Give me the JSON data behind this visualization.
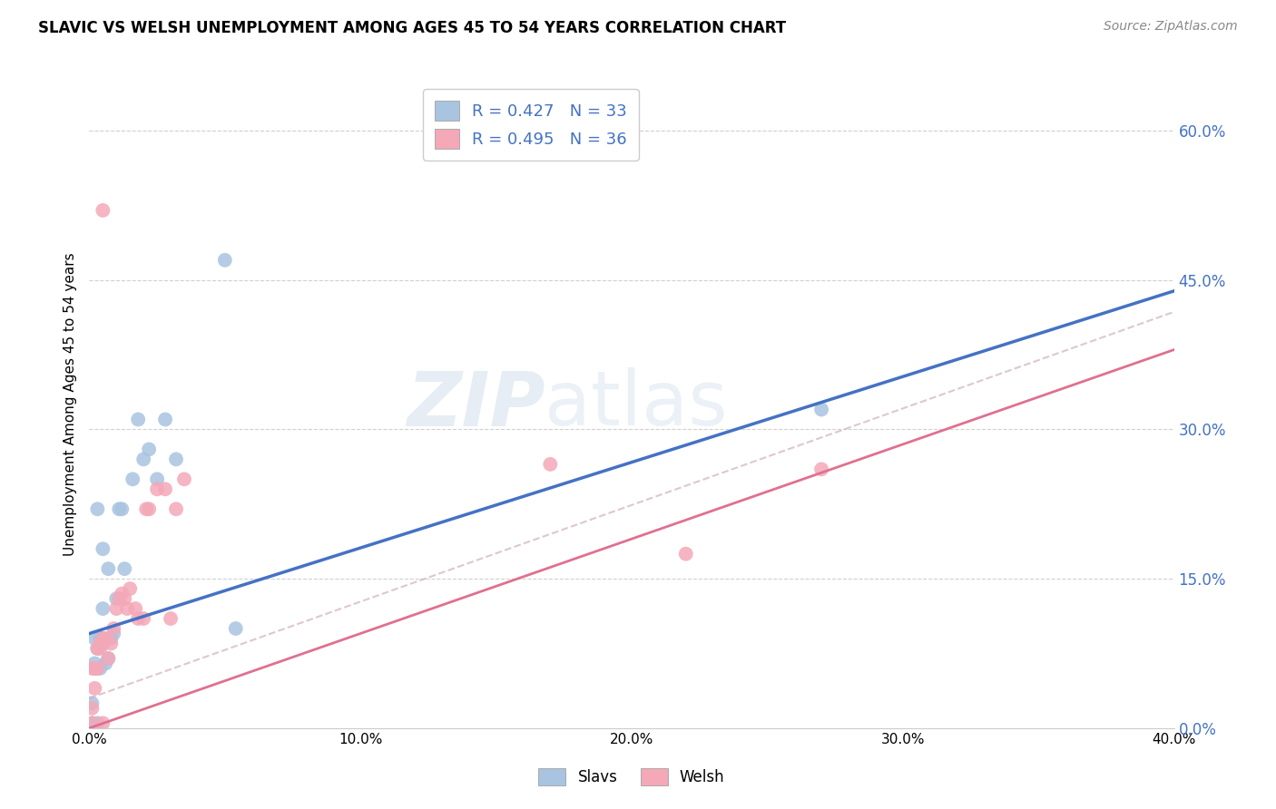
{
  "title": "SLAVIC VS WELSH UNEMPLOYMENT AMONG AGES 45 TO 54 YEARS CORRELATION CHART",
  "source": "Source: ZipAtlas.com",
  "ylabel": "Unemployment Among Ages 45 to 54 years",
  "xlim": [
    0.0,
    0.4
  ],
  "ylim": [
    0.0,
    0.65
  ],
  "xticks": [
    0.0,
    0.1,
    0.2,
    0.3,
    0.4
  ],
  "xtick_labels": [
    "0.0%",
    "10.0%",
    "20.0%",
    "30.0%",
    "40.0%"
  ],
  "yticks_right": [
    0.0,
    0.15,
    0.3,
    0.45,
    0.6
  ],
  "ytick_labels_right": [
    "0.0%",
    "15.0%",
    "30.0%",
    "45.0%",
    "60.0%"
  ],
  "slavs_R": "0.427",
  "slavs_N": "33",
  "welsh_R": "0.495",
  "welsh_N": "36",
  "slavs_color": "#a8c4e0",
  "welsh_color": "#f4a8b8",
  "line_slavs_color": "#4472c4",
  "line_welsh_color": "#e07090",
  "line_slavs_intercept": 0.095,
  "line_slavs_slope": 0.86,
  "line_welsh_intercept": 0.0,
  "line_welsh_slope": 0.95,
  "line_dashed_intercept": 0.03,
  "line_dashed_slope": 0.97,
  "slavs_x": [
    0.001,
    0.001,
    0.002,
    0.002,
    0.002,
    0.003,
    0.003,
    0.003,
    0.003,
    0.004,
    0.004,
    0.005,
    0.005,
    0.005,
    0.006,
    0.007,
    0.007,
    0.008,
    0.009,
    0.01,
    0.011,
    0.012,
    0.013,
    0.016,
    0.018,
    0.02,
    0.022,
    0.025,
    0.028,
    0.032,
    0.05,
    0.054,
    0.27
  ],
  "slavs_y": [
    0.005,
    0.025,
    0.06,
    0.065,
    0.09,
    0.06,
    0.08,
    0.22,
    0.005,
    0.06,
    0.09,
    0.09,
    0.12,
    0.18,
    0.065,
    0.07,
    0.16,
    0.09,
    0.095,
    0.13,
    0.22,
    0.22,
    0.16,
    0.25,
    0.31,
    0.27,
    0.28,
    0.25,
    0.31,
    0.27,
    0.47,
    0.1,
    0.32
  ],
  "welsh_x": [
    0.001,
    0.001,
    0.001,
    0.002,
    0.002,
    0.003,
    0.003,
    0.004,
    0.004,
    0.005,
    0.005,
    0.005,
    0.006,
    0.007,
    0.008,
    0.009,
    0.01,
    0.011,
    0.012,
    0.013,
    0.014,
    0.015,
    0.017,
    0.018,
    0.02,
    0.021,
    0.022,
    0.025,
    0.028,
    0.03,
    0.032,
    0.035,
    0.17,
    0.22,
    0.27,
    0.005
  ],
  "welsh_y": [
    0.005,
    0.02,
    0.06,
    0.04,
    0.06,
    0.06,
    0.08,
    0.08,
    0.085,
    0.085,
    0.09,
    0.005,
    0.09,
    0.07,
    0.085,
    0.1,
    0.12,
    0.13,
    0.135,
    0.13,
    0.12,
    0.14,
    0.12,
    0.11,
    0.11,
    0.22,
    0.22,
    0.24,
    0.24,
    0.11,
    0.22,
    0.25,
    0.265,
    0.175,
    0.26,
    0.52
  ]
}
